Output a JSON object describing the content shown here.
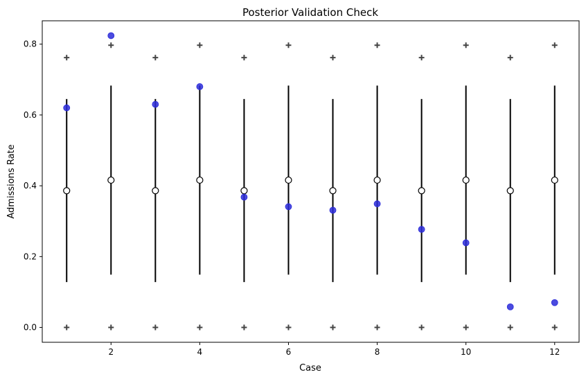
{
  "chart_data": {
    "type": "scatter",
    "title": "Posterior Validation Check",
    "xlabel": "Case",
    "ylabel": "Admissions Rate",
    "xlim": [
      0.45,
      12.55
    ],
    "ylim": [
      -0.042,
      0.866
    ],
    "xticks": [
      2,
      4,
      6,
      8,
      10,
      12
    ],
    "yticks": [
      0.0,
      0.2,
      0.4,
      0.6,
      0.8
    ],
    "ytick_labels": [
      "0.0",
      "0.2",
      "0.4",
      "0.6",
      "0.8"
    ],
    "grid": false,
    "legend": "none",
    "cases": [
      1,
      2,
      3,
      4,
      5,
      6,
      7,
      8,
      9,
      10,
      11,
      12
    ],
    "observed": {
      "marker": "filled-circle",
      "color": "#2b2bd9",
      "values": [
        0.62,
        0.824,
        0.63,
        0.68,
        0.368,
        0.341,
        0.331,
        0.349,
        0.277,
        0.239,
        0.058,
        0.07
      ]
    },
    "predicted_mean": {
      "marker": "open-circle",
      "color": "#000000",
      "values": [
        0.386,
        0.416,
        0.386,
        0.416,
        0.386,
        0.416,
        0.386,
        0.416,
        0.386,
        0.416,
        0.386,
        0.416
      ]
    },
    "interval": {
      "color": "#000000",
      "lower": [
        0.128,
        0.149,
        0.128,
        0.149,
        0.128,
        0.149,
        0.128,
        0.149,
        0.128,
        0.149,
        0.128,
        0.149
      ],
      "upper": [
        0.645,
        0.683,
        0.645,
        0.683,
        0.645,
        0.683,
        0.645,
        0.683,
        0.645,
        0.683,
        0.645,
        0.683
      ]
    },
    "outer_bounds": {
      "marker": "plus",
      "color": "#444444",
      "lower": [
        0,
        0,
        0,
        0,
        0,
        0,
        0,
        0,
        0,
        0,
        0,
        0
      ],
      "upper": [
        0.762,
        0.797,
        0.762,
        0.797,
        0.762,
        0.797,
        0.762,
        0.797,
        0.762,
        0.797,
        0.762,
        0.797
      ]
    }
  }
}
